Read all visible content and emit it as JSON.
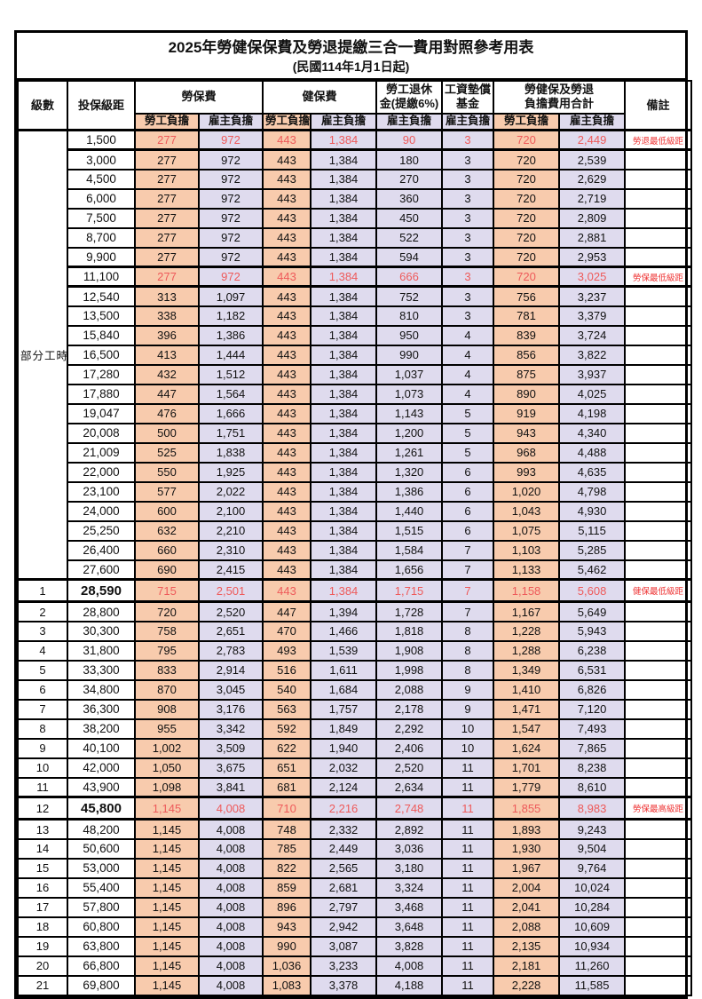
{
  "title": "2025年勞健保保費及勞退提繳三合一費用對照參考用表",
  "subtitle": "(民國114年1月1日起)",
  "colors": {
    "employee_bg": "#F8CBAD",
    "employer_bg": "#DFDBEE",
    "highlight_text": "#EE5A5A",
    "note_text": "#EE3232"
  },
  "header": {
    "level": "級數",
    "bracket": "投保級距",
    "labor_ins": "勞保費",
    "health_ins": "健保費",
    "pension_line1": "勞工退休",
    "pension_line2": "金(提繳6%)",
    "wage_fund_line1": "工資墊償",
    "wage_fund_line2": "基金",
    "total_line1": "勞健保及勞退",
    "total_line2": "負擔費用合計",
    "remark": "備註",
    "employee": "勞工負擔",
    "employer": "雇主負擔"
  },
  "part_time_label": "部分工時",
  "rows": [
    {
      "level": "",
      "bracket": "1,500",
      "values": [
        "277",
        "972",
        "443",
        "1,384",
        "90",
        "3",
        "720",
        "2,449"
      ],
      "note": "勞退最低級距",
      "red": true,
      "bold": false
    },
    {
      "level": "",
      "bracket": "3,000",
      "values": [
        "277",
        "972",
        "443",
        "1,384",
        "180",
        "3",
        "720",
        "2,539"
      ],
      "note": "",
      "red": false,
      "bold": false
    },
    {
      "level": "",
      "bracket": "4,500",
      "values": [
        "277",
        "972",
        "443",
        "1,384",
        "270",
        "3",
        "720",
        "2,629"
      ],
      "note": "",
      "red": false,
      "bold": false
    },
    {
      "level": "",
      "bracket": "6,000",
      "values": [
        "277",
        "972",
        "443",
        "1,384",
        "360",
        "3",
        "720",
        "2,719"
      ],
      "note": "",
      "red": false,
      "bold": false
    },
    {
      "level": "",
      "bracket": "7,500",
      "values": [
        "277",
        "972",
        "443",
        "1,384",
        "450",
        "3",
        "720",
        "2,809"
      ],
      "note": "",
      "red": false,
      "bold": false
    },
    {
      "level": "",
      "bracket": "8,700",
      "values": [
        "277",
        "972",
        "443",
        "1,384",
        "522",
        "3",
        "720",
        "2,881"
      ],
      "note": "",
      "red": false,
      "bold": false
    },
    {
      "level": "",
      "bracket": "9,900",
      "values": [
        "277",
        "972",
        "443",
        "1,384",
        "594",
        "3",
        "720",
        "2,953"
      ],
      "note": "",
      "red": false,
      "bold": false
    },
    {
      "level": "",
      "bracket": "11,100",
      "values": [
        "277",
        "972",
        "443",
        "1,384",
        "666",
        "3",
        "720",
        "3,025"
      ],
      "note": "勞保最低級距",
      "red": true,
      "bold": false
    },
    {
      "level": "",
      "bracket": "12,540",
      "values": [
        "313",
        "1,097",
        "443",
        "1,384",
        "752",
        "3",
        "756",
        "3,237"
      ],
      "note": "",
      "red": false,
      "bold": false
    },
    {
      "level": "",
      "bracket": "13,500",
      "values": [
        "338",
        "1,182",
        "443",
        "1,384",
        "810",
        "3",
        "781",
        "3,379"
      ],
      "note": "",
      "red": false,
      "bold": false
    },
    {
      "level": "",
      "bracket": "15,840",
      "values": [
        "396",
        "1,386",
        "443",
        "1,384",
        "950",
        "4",
        "839",
        "3,724"
      ],
      "note": "",
      "red": false,
      "bold": false
    },
    {
      "level": "",
      "bracket": "16,500",
      "values": [
        "413",
        "1,444",
        "443",
        "1,384",
        "990",
        "4",
        "856",
        "3,822"
      ],
      "note": "",
      "red": false,
      "bold": false
    },
    {
      "level": "",
      "bracket": "17,280",
      "values": [
        "432",
        "1,512",
        "443",
        "1,384",
        "1,037",
        "4",
        "875",
        "3,937"
      ],
      "note": "",
      "red": false,
      "bold": false
    },
    {
      "level": "",
      "bracket": "17,880",
      "values": [
        "447",
        "1,564",
        "443",
        "1,384",
        "1,073",
        "4",
        "890",
        "4,025"
      ],
      "note": "",
      "red": false,
      "bold": false
    },
    {
      "level": "",
      "bracket": "19,047",
      "values": [
        "476",
        "1,666",
        "443",
        "1,384",
        "1,143",
        "5",
        "919",
        "4,198"
      ],
      "note": "",
      "red": false,
      "bold": false
    },
    {
      "level": "",
      "bracket": "20,008",
      "values": [
        "500",
        "1,751",
        "443",
        "1,384",
        "1,200",
        "5",
        "943",
        "4,340"
      ],
      "note": "",
      "red": false,
      "bold": false
    },
    {
      "level": "",
      "bracket": "21,009",
      "values": [
        "525",
        "1,838",
        "443",
        "1,384",
        "1,261",
        "5",
        "968",
        "4,488"
      ],
      "note": "",
      "red": false,
      "bold": false
    },
    {
      "level": "",
      "bracket": "22,000",
      "values": [
        "550",
        "1,925",
        "443",
        "1,384",
        "1,320",
        "6",
        "993",
        "4,635"
      ],
      "note": "",
      "red": false,
      "bold": false
    },
    {
      "level": "",
      "bracket": "23,100",
      "values": [
        "577",
        "2,022",
        "443",
        "1,384",
        "1,386",
        "6",
        "1,020",
        "4,798"
      ],
      "note": "",
      "red": false,
      "bold": false
    },
    {
      "level": "",
      "bracket": "24,000",
      "values": [
        "600",
        "2,100",
        "443",
        "1,384",
        "1,440",
        "6",
        "1,043",
        "4,930"
      ],
      "note": "",
      "red": false,
      "bold": false
    },
    {
      "level": "",
      "bracket": "25,250",
      "values": [
        "632",
        "2,210",
        "443",
        "1,384",
        "1,515",
        "6",
        "1,075",
        "5,115"
      ],
      "note": "",
      "red": false,
      "bold": false
    },
    {
      "level": "",
      "bracket": "26,400",
      "values": [
        "660",
        "2,310",
        "443",
        "1,384",
        "1,584",
        "7",
        "1,103",
        "5,285"
      ],
      "note": "",
      "red": false,
      "bold": false
    },
    {
      "level": "",
      "bracket": "27,600",
      "values": [
        "690",
        "2,415",
        "443",
        "1,384",
        "1,656",
        "7",
        "1,133",
        "5,462"
      ],
      "note": "",
      "red": false,
      "bold": false
    },
    {
      "level": "1",
      "bracket": "28,590",
      "values": [
        "715",
        "2,501",
        "443",
        "1,384",
        "1,715",
        "7",
        "1,158",
        "5,608"
      ],
      "note": "健保最低級距",
      "red": true,
      "bold": true
    },
    {
      "level": "2",
      "bracket": "28,800",
      "values": [
        "720",
        "2,520",
        "447",
        "1,394",
        "1,728",
        "7",
        "1,167",
        "5,649"
      ],
      "note": "",
      "red": false,
      "bold": false
    },
    {
      "level": "3",
      "bracket": "30,300",
      "values": [
        "758",
        "2,651",
        "470",
        "1,466",
        "1,818",
        "8",
        "1,228",
        "5,943"
      ],
      "note": "",
      "red": false,
      "bold": false
    },
    {
      "level": "4",
      "bracket": "31,800",
      "values": [
        "795",
        "2,783",
        "493",
        "1,539",
        "1,908",
        "8",
        "1,288",
        "6,238"
      ],
      "note": "",
      "red": false,
      "bold": false
    },
    {
      "level": "5",
      "bracket": "33,300",
      "values": [
        "833",
        "2,914",
        "516",
        "1,611",
        "1,998",
        "8",
        "1,349",
        "6,531"
      ],
      "note": "",
      "red": false,
      "bold": false
    },
    {
      "level": "6",
      "bracket": "34,800",
      "values": [
        "870",
        "3,045",
        "540",
        "1,684",
        "2,088",
        "9",
        "1,410",
        "6,826"
      ],
      "note": "",
      "red": false,
      "bold": false
    },
    {
      "level": "7",
      "bracket": "36,300",
      "values": [
        "908",
        "3,176",
        "563",
        "1,757",
        "2,178",
        "9",
        "1,471",
        "7,120"
      ],
      "note": "",
      "red": false,
      "bold": false
    },
    {
      "level": "8",
      "bracket": "38,200",
      "values": [
        "955",
        "3,342",
        "592",
        "1,849",
        "2,292",
        "10",
        "1,547",
        "7,493"
      ],
      "note": "",
      "red": false,
      "bold": false
    },
    {
      "level": "9",
      "bracket": "40,100",
      "values": [
        "1,002",
        "3,509",
        "622",
        "1,940",
        "2,406",
        "10",
        "1,624",
        "7,865"
      ],
      "note": "",
      "red": false,
      "bold": false
    },
    {
      "level": "10",
      "bracket": "42,000",
      "values": [
        "1,050",
        "3,675",
        "651",
        "2,032",
        "2,520",
        "11",
        "1,701",
        "8,238"
      ],
      "note": "",
      "red": false,
      "bold": false
    },
    {
      "level": "11",
      "bracket": "43,900",
      "values": [
        "1,098",
        "3,841",
        "681",
        "2,124",
        "2,634",
        "11",
        "1,779",
        "8,610"
      ],
      "note": "",
      "red": false,
      "bold": false
    },
    {
      "level": "12",
      "bracket": "45,800",
      "values": [
        "1,145",
        "4,008",
        "710",
        "2,216",
        "2,748",
        "11",
        "1,855",
        "8,983"
      ],
      "note": "勞保最高級距",
      "red": true,
      "bold": true
    },
    {
      "level": "13",
      "bracket": "48,200",
      "values": [
        "1,145",
        "4,008",
        "748",
        "2,332",
        "2,892",
        "11",
        "1,893",
        "9,243"
      ],
      "note": "",
      "red": false,
      "bold": false
    },
    {
      "level": "14",
      "bracket": "50,600",
      "values": [
        "1,145",
        "4,008",
        "785",
        "2,449",
        "3,036",
        "11",
        "1,930",
        "9,504"
      ],
      "note": "",
      "red": false,
      "bold": false
    },
    {
      "level": "15",
      "bracket": "53,000",
      "values": [
        "1,145",
        "4,008",
        "822",
        "2,565",
        "3,180",
        "11",
        "1,967",
        "9,764"
      ],
      "note": "",
      "red": false,
      "bold": false
    },
    {
      "level": "16",
      "bracket": "55,400",
      "values": [
        "1,145",
        "4,008",
        "859",
        "2,681",
        "3,324",
        "11",
        "2,004",
        "10,024"
      ],
      "note": "",
      "red": false,
      "bold": false
    },
    {
      "level": "17",
      "bracket": "57,800",
      "values": [
        "1,145",
        "4,008",
        "896",
        "2,797",
        "3,468",
        "11",
        "2,041",
        "10,284"
      ],
      "note": "",
      "red": false,
      "bold": false
    },
    {
      "level": "18",
      "bracket": "60,800",
      "values": [
        "1,145",
        "4,008",
        "943",
        "2,942",
        "3,648",
        "11",
        "2,088",
        "10,609"
      ],
      "note": "",
      "red": false,
      "bold": false
    },
    {
      "level": "19",
      "bracket": "63,800",
      "values": [
        "1,145",
        "4,008",
        "990",
        "3,087",
        "3,828",
        "11",
        "2,135",
        "10,934"
      ],
      "note": "",
      "red": false,
      "bold": false
    },
    {
      "level": "20",
      "bracket": "66,800",
      "values": [
        "1,145",
        "4,008",
        "1,036",
        "3,233",
        "4,008",
        "11",
        "2,181",
        "11,260"
      ],
      "note": "",
      "red": false,
      "bold": false
    },
    {
      "level": "21",
      "bracket": "69,800",
      "values": [
        "1,145",
        "4,008",
        "1,083",
        "3,378",
        "4,188",
        "11",
        "2,228",
        "11,585"
      ],
      "note": "",
      "red": false,
      "bold": false
    }
  ]
}
